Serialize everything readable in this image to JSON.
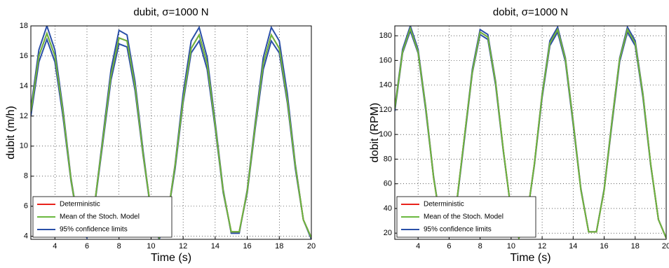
{
  "chart_data": [
    {
      "type": "line",
      "title": "dubit, σ=1000 N",
      "x_label": "Time (s)",
      "y_label": "dubit (m/h)",
      "x": [
        2.5,
        3,
        3.5,
        4,
        4.5,
        5,
        5.5,
        6,
        6.5,
        7,
        7.5,
        8,
        8.5,
        9,
        9.5,
        10,
        10.5,
        11,
        11.5,
        12,
        12.5,
        13,
        13.5,
        14,
        14.5,
        15,
        15.5,
        16,
        16.5,
        17,
        17.5,
        18,
        18.5,
        19,
        19.5,
        20
      ],
      "xlim": [
        2.5,
        20
      ],
      "xticks": [
        4,
        6,
        8,
        10,
        12,
        14,
        16,
        18,
        20
      ],
      "ylim": [
        3.8,
        18
      ],
      "yticks": [
        4,
        6,
        8,
        10,
        12,
        14,
        16,
        18
      ],
      "grid": true,
      "legend": "lower-left",
      "series": [
        {
          "name": "Deterministic",
          "color": "#e8231c",
          "values": [
            12.3,
            16.0,
            17.5,
            16.0,
            12.3,
            7.8,
            4.6,
            4.0,
            6.3,
            10.5,
            14.7,
            17.2,
            17.0,
            14.0,
            9.5,
            5.7,
            3.9,
            5.1,
            8.7,
            13.1,
            16.5,
            17.4,
            15.5,
            11.4,
            7.0,
            4.3,
            4.3,
            7.0,
            11.4,
            15.5,
            17.4,
            16.5,
            13.1,
            8.7,
            5.1,
            3.9
          ]
        },
        {
          "name": "Mean of the Stoch. Model",
          "color": "#6ab83f",
          "values": [
            12.3,
            16.0,
            17.5,
            16.0,
            12.3,
            7.8,
            4.6,
            4.0,
            6.3,
            10.5,
            14.7,
            17.2,
            17.0,
            14.0,
            9.5,
            5.7,
            3.9,
            5.1,
            8.7,
            13.1,
            16.5,
            17.4,
            15.5,
            11.4,
            7.0,
            4.3,
            4.3,
            7.0,
            11.4,
            15.5,
            17.4,
            16.5,
            13.1,
            8.7,
            5.1,
            3.9
          ]
        },
        {
          "name": "95% confidence limits",
          "color": "#2a4fa8",
          "values": [
            12.5,
            16.4,
            18.0,
            16.4,
            12.5,
            7.9,
            4.6,
            3.9,
            6.3,
            10.7,
            15.1,
            17.7,
            17.4,
            14.3,
            9.7,
            5.6,
            3.8,
            5.1,
            8.8,
            13.5,
            17.0,
            17.9,
            15.9,
            11.6,
            7.1,
            4.2,
            4.2,
            7.1,
            11.6,
            15.9,
            17.9,
            17.0,
            13.5,
            8.8,
            5.1,
            3.8
          ],
          "lower": [
            12.0,
            15.6,
            17.1,
            15.6,
            12.0,
            7.7,
            4.6,
            4.0,
            6.2,
            10.3,
            14.4,
            16.8,
            16.6,
            13.7,
            9.4,
            5.6,
            3.9,
            5.1,
            8.5,
            12.9,
            16.2,
            17.0,
            15.1,
            11.2,
            6.9,
            4.3,
            4.3,
            6.9,
            11.2,
            15.1,
            17.0,
            16.2,
            12.9,
            8.5,
            5.1,
            3.9
          ]
        }
      ]
    },
    {
      "type": "line",
      "title": "dobit, σ=1000 N",
      "x_label": "Time (s)",
      "y_label": "dobit (RPM)",
      "x": [
        2.5,
        3,
        3.5,
        4,
        4.5,
        5,
        5.5,
        6,
        6.5,
        7,
        7.5,
        8,
        8.5,
        9,
        9.5,
        10,
        10.5,
        11,
        11.5,
        12,
        12.5,
        13,
        13.5,
        14,
        14.5,
        15,
        15.5,
        16,
        16.5,
        17,
        17.5,
        18,
        18.5,
        19,
        19.5,
        20
      ],
      "xlim": [
        2.5,
        20
      ],
      "xticks": [
        4,
        6,
        8,
        10,
        12,
        14,
        16,
        18,
        20
      ],
      "ylim": [
        15,
        188
      ],
      "yticks": [
        20,
        40,
        60,
        80,
        100,
        120,
        140,
        160,
        180
      ],
      "grid": true,
      "legend": "lower-left",
      "series": [
        {
          "name": "Deterministic",
          "color": "#e8231c",
          "values": [
            121,
            167,
            186,
            167,
            121,
            65,
            25,
            18,
            46,
            99,
            151,
            183,
            179,
            142,
            87,
            38,
            16,
            31,
            76,
            132,
            174,
            185,
            161,
            110,
            55,
            21,
            21,
            55,
            110,
            161,
            185,
            174,
            132,
            76,
            31,
            16
          ]
        },
        {
          "name": "Mean of the Stoch. Model",
          "color": "#6ab83f",
          "values": [
            121,
            167,
            186,
            167,
            121,
            65,
            25,
            18,
            46,
            99,
            151,
            183,
            179,
            142,
            87,
            38,
            16,
            31,
            76,
            132,
            174,
            185,
            161,
            110,
            55,
            21,
            21,
            55,
            110,
            161,
            185,
            174,
            132,
            76,
            31,
            16
          ]
        },
        {
          "name": "95% confidence limits",
          "color": "#2a4fa8",
          "values": [
            122,
            169,
            188,
            169,
            122,
            66,
            25,
            18,
            46,
            99,
            153,
            185,
            181,
            143,
            87,
            38,
            16,
            31,
            76,
            133,
            176,
            187,
            162,
            111,
            56,
            21,
            21,
            56,
            111,
            162,
            187,
            176,
            133,
            76,
            31,
            16
          ],
          "lower": [
            119,
            166,
            184,
            166,
            119,
            65,
            25,
            18,
            45,
            97,
            150,
            181,
            177,
            140,
            86,
            38,
            16,
            31,
            75,
            130,
            172,
            183,
            159,
            108,
            55,
            21,
            21,
            55,
            108,
            159,
            183,
            172,
            130,
            75,
            31,
            16
          ]
        }
      ]
    }
  ]
}
